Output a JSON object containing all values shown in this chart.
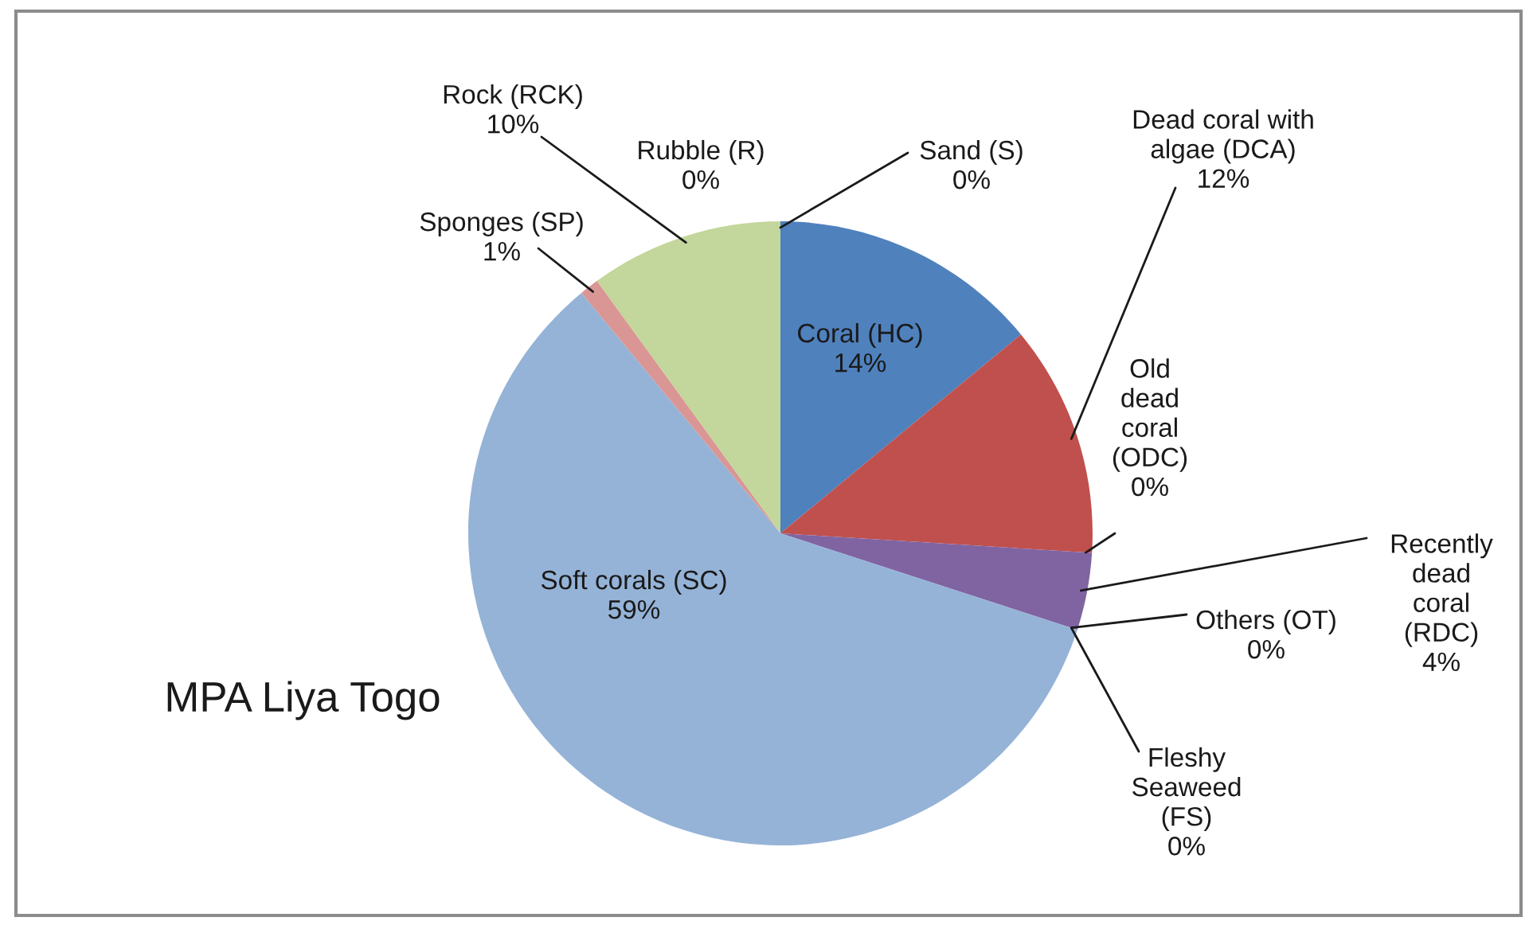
{
  "chart_data": {
    "type": "pie",
    "title": "MPA Liya Togo",
    "categories": [
      "Coral (HC)",
      "Dead coral with algae (DCA)",
      "Old dead coral (ODC)",
      "Recently dead coral (RDC)",
      "Others (OT)",
      "Fleshy Seaweed (FS)",
      "Soft corals (SC)",
      "Sponges (SP)",
      "Rock (RCK)",
      "Rubble (R)",
      "Sand (S)"
    ],
    "values": [
      14,
      12,
      0,
      4,
      0,
      0,
      59,
      1,
      10,
      0,
      0
    ],
    "value_labels": [
      "14%",
      "12%",
      "0%",
      "4%",
      "0%",
      "0%",
      "59%",
      "1%",
      "10%",
      "0%",
      "0%"
    ],
    "colors": [
      "#4f81bd",
      "#c0504d",
      "#9bbb59",
      "#8064a2",
      "#4bacc6",
      "#f79646",
      "#95b3d7",
      "#d99694",
      "#c3d69b",
      "#b3a2c7",
      "#93cdde"
    ]
  }
}
